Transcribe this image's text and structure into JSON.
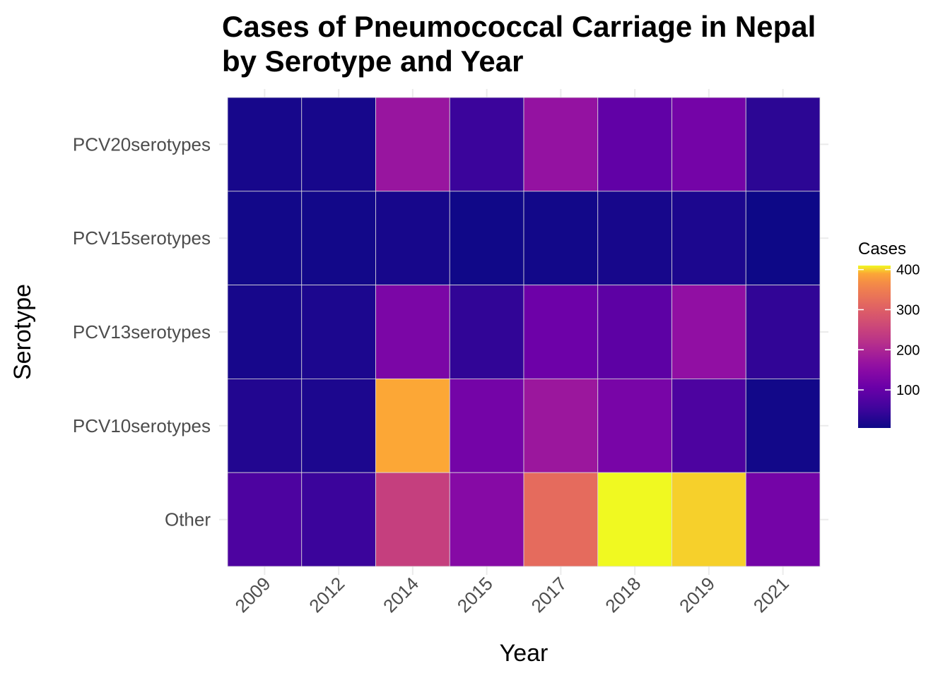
{
  "chart_data": {
    "type": "heatmap",
    "title": "Cases of Pneumococcal Carriage in Nepal by Serotype and Year",
    "title_lines": [
      "Cases of Pneumococcal Carriage in Nepal",
      "by Serotype and Year"
    ],
    "xlabel": "Year",
    "ylabel": "Serotype",
    "x": [
      "2009",
      "2012",
      "2014",
      "2015",
      "2017",
      "2018",
      "2019",
      "2021"
    ],
    "y": [
      "PCV20serotypes",
      "PCV15serotypes",
      "PCV13serotypes",
      "PCV10serotypes",
      "Other"
    ],
    "values": [
      [
        15,
        15,
        170,
        50,
        165,
        95,
        120,
        35
      ],
      [
        10,
        10,
        15,
        8,
        10,
        15,
        20,
        5
      ],
      [
        15,
        20,
        130,
        40,
        110,
        90,
        160,
        40
      ],
      [
        25,
        20,
        390,
        120,
        175,
        125,
        70,
        10
      ],
      [
        70,
        50,
        245,
        145,
        320,
        410,
        400,
        120
      ]
    ],
    "legend": {
      "title": "Cases",
      "ticks": [
        100,
        200,
        300,
        400
      ],
      "range": [
        5,
        410
      ],
      "colormap": "plasma"
    },
    "grid": true
  }
}
